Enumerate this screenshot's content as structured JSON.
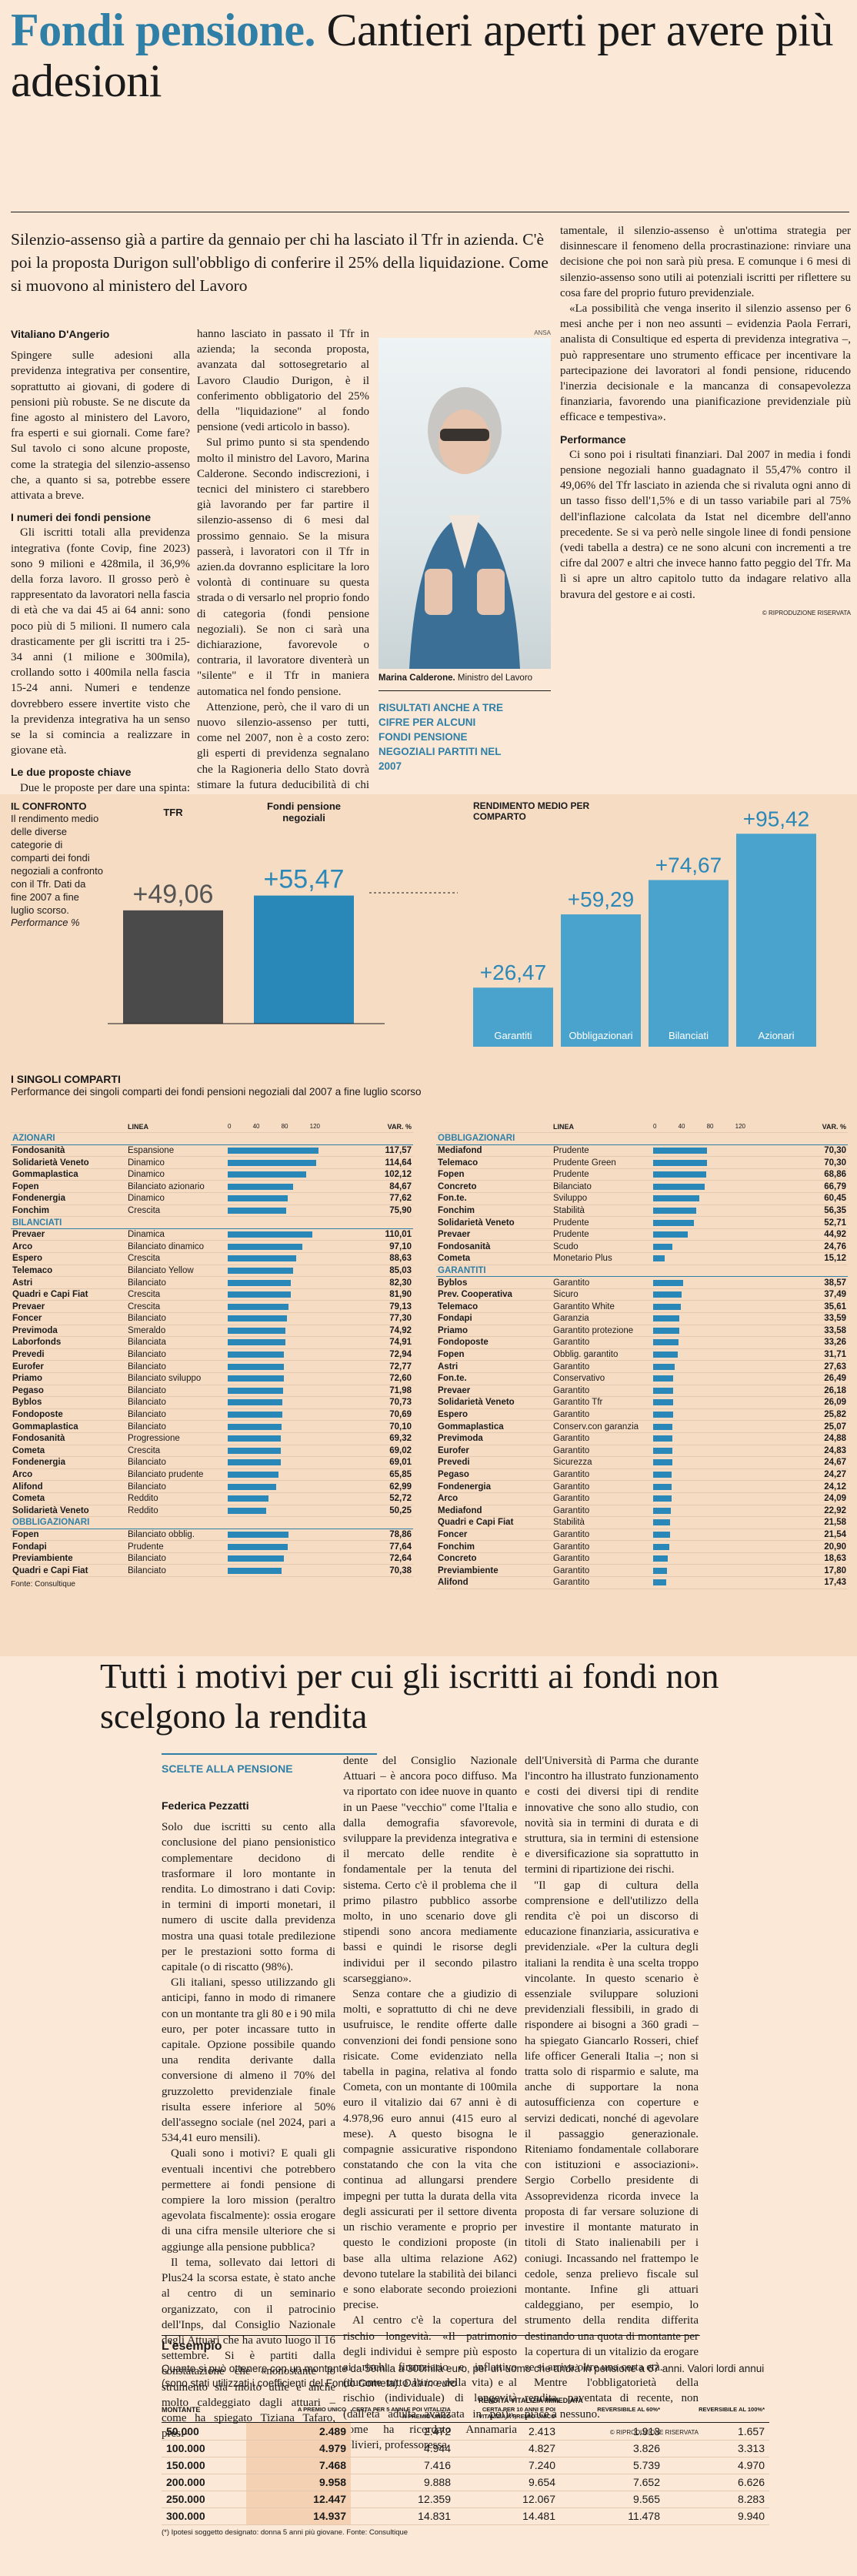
{
  "headline": {
    "accent": "Fondi pensione.",
    "rest": " Cantieri aperti per avere più adesioni"
  },
  "deck": "Silenzio-assenso già a partire da gennaio per chi ha lasciato il Tfr in azienda. C'è poi la proposta Durigon sull'obbligo di conferire il 25% della liquidazione. Come si muovono al ministero del Lavoro",
  "author": "Vitaliano D'Angerio",
  "col1": [
    "Spingere sulle adesioni alla previdenza integrativa per consentire, soprattutto ai giovani, di godere di pensioni più robuste. Se ne discute da fine agosto al ministero del Lavoro, fra esperti e sui giornali. Come fare? Sul tavolo ci sono alcune proposte, come la strategia del silenzio-assenso che, a quanto si sa, potrebbe essere attivata a breve.",
    "#I numeri dei fondi pensione",
    "Gli iscritti totali alla previdenza integrativa (fonte Covip, fine 2023) sono 9 milioni e 428mila, il 36,9% della forza lavoro. Il grosso però è rappresentato da lavoratori nella fascia di età che va dai 45 ai 64 anni: sono poco più di 5 milioni. Il numero cala drasticamente per gli iscritti tra i 25-34 anni (1 milione e 300mila), crollando sotto i 400mila nella fascia 15-24 anni. Numeri e tendenze dovrebbero essere invertite visto che la previdenza integrativa ha un senso se la si comincia a realizzare in giovane età.",
    "#Le due proposte chiave",
    "Due le proposte per dare una spinta: il silenzio-assenso non soltanto per i neoassunti (attualmente in vigore) ma anche per coloro che"
  ],
  "col2": [
    "hanno lasciato in passato il Tfr in azienda; la seconda proposta, avanzata dal sottosegretario al Lavoro Claudio Durigon, è il conferimento obbligatorio del 25% della \"liquidazione\" al fondo pensione (vedi articolo in basso).",
    "Sul primo punto si sta spendendo molto il ministro del Lavoro, Marina Calderone. Secondo indiscrezioni, i tecnici del ministero ci starebbero già lavorando per far partire il silenzio-assenso di 6 mesi dal prossimo gennaio. Se la misura passerà, i lavoratori con il Tfr in azien.da dovranno esplicitare la loro volontà di continuare su questa strada o di versarlo nel proprio fondo di categoria (fondi pensione negoziali). Se non ci sarà una dichiarazione, favorevole o contraria, il lavoratore diventerà un \"silente\" e il Tfr in maniera automatica nel fondo pensione.",
    "Attenzione, però, che il varo di un nuovo silenzio-assenso per tutti, come nel 2007, non è a costo zero: gli esperti di previdenza segnalano che la Ragioneria dello Stato dovrà stimare la futura deducibilità di chi verserà contributi personali; il Tfr invece non è deducibile.",
    "#Silenzio e procrastinazione",
    "Per gli esperti di finanza compor-"
  ],
  "col3": [
    "tamentale, il silenzio-assenso è un'ottima strategia per disinnescare il fenomeno della procrastinazione: rinviare una decisione che poi non sarà più presa. E comunque i 6 mesi di silenzio-assenso sono utili ai potenziali iscritti per riflettere su cosa fare del proprio futuro previdenziale.",
    "«La possibilità che venga inserito il silenzio assenso per 6 mesi anche per i non neo assunti – evidenzia Paola Ferrari, analista di Consultique ed esperta di previdenza integrativa –, può rappresentare uno strumento efficace per incentivare la partecipazione dei lavoratori al fondi pensione, riducendo l'inerzia decisionale e la mancanza di consapevolezza finanziaria, favorendo una pianificazione previdenziale più efficace e tempestiva».",
    "#Performance",
    "Ci sono poi i risultati finanziari. Dal 2007 in media i fondi pensione negoziali hanno guadagnato il 55,47% contro il 49,06% del Tfr lasciato in azienda che si rivaluta ogni anno di un tasso fisso dell'1,5% e di un tasso variabile pari al 75% dell'inflazione calcolata da Istat nel dicembre dell'anno precedente. Se si va però nelle singole linee di fondi pensione (vedi tabella a destra) ce ne sono alcuni con incrementi a tre cifre dal 2007 e altri che invece hanno fatto peggio del Tfr. Ma lì si apre un altro capitolo tutto da indagare relativo alla bravura del gestore e ai costi."
  ],
  "photo": {
    "caption_name": "Marina Calderone.",
    "caption_role": " Ministro del Lavoro",
    "credit": "ANSA"
  },
  "pullquote": "RISULTATI ANCHE A TRE CIFRE PER ALCUNI FONDI PENSIONE NEGOZIALI PARTITI NEL 2007",
  "copyright": "© RIPRODUZIONE RISERVATA",
  "confronto": {
    "title": "IL CONFRONTO",
    "text": "Il rendimento medio delle diverse categorie di comparti dei fondi negoziali a confronto con il Tfr. Dati da fine 2007 a fine luglio scorso.",
    "unit": "Performance %",
    "chart_data": {
      "type": "bar",
      "categories": [
        "TFR",
        "Fondi pensione negoziali"
      ],
      "values": [
        49.06,
        55.47
      ],
      "labels": [
        "+49,06",
        "+55,47"
      ]
    }
  },
  "rendimento": {
    "title": "RENDIMENTO MEDIO PER COMPARTO",
    "chart_data": {
      "type": "bar",
      "categories": [
        "Garantiti",
        "Obbligazionari",
        "Bilanciati",
        "Azionari"
      ],
      "values": [
        26.47,
        59.29,
        74.67,
        95.42
      ],
      "labels": [
        "+26,47",
        "+59,29",
        "+74,67",
        "+95,42"
      ]
    }
  },
  "comparti": {
    "title": "I SINGOLI COMPARTI",
    "subtitle": "Performance dei singoli comparti dei fondi pensioni negoziali dal 2007 a fine luglio scorso",
    "axis": [
      "0",
      "40",
      "80",
      "120"
    ],
    "var_label": "VAR. %",
    "linea_label": "LINEA",
    "source": "Fonte: Consultique",
    "left": [
      {
        "cat": "AZIONARI"
      },
      {
        "n": "Fondosanità",
        "l": "Espansione",
        "v": "117,57",
        "x": 117.57
      },
      {
        "n": "Solidarietà Veneto",
        "l": "Dinamico",
        "v": "114,64",
        "x": 114.64
      },
      {
        "n": "Gommaplastica",
        "l": "Dinamico",
        "v": "102,12",
        "x": 102.12
      },
      {
        "n": "Fopen",
        "l": "Bilanciato azionario",
        "v": "84,67",
        "x": 84.67
      },
      {
        "n": "Fondenergia",
        "l": "Dinamico",
        "v": "77,62",
        "x": 77.62
      },
      {
        "n": "Fonchim",
        "l": "Crescita",
        "v": "75,90",
        "x": 75.9
      },
      {
        "cat": "BILANCIATI"
      },
      {
        "n": "Prevaer",
        "l": "Dinamica",
        "v": "110,01",
        "x": 110.01
      },
      {
        "n": "Arco",
        "l": "Bilanciato dinamico",
        "v": "97,10",
        "x": 97.1
      },
      {
        "n": "Espero",
        "l": "Crescita",
        "v": "88,63",
        "x": 88.63
      },
      {
        "n": "Telemaco",
        "l": "Bilanciato Yellow",
        "v": "85,03",
        "x": 85.03
      },
      {
        "n": "Astri",
        "l": "Bilanciato",
        "v": "82,30",
        "x": 82.3
      },
      {
        "n": "Quadri e Capi Fiat",
        "l": "Crescita",
        "v": "81,90",
        "x": 81.9
      },
      {
        "n": "Prevaer",
        "l": "Crescita",
        "v": "79,13",
        "x": 79.13
      },
      {
        "n": "Foncer",
        "l": "Bilanciato",
        "v": "77,30",
        "x": 77.3
      },
      {
        "n": "Previmoda",
        "l": "Smeraldo",
        "v": "74,92",
        "x": 74.92
      },
      {
        "n": "Laborfonds",
        "l": "Bilanciata",
        "v": "74,91",
        "x": 74.91
      },
      {
        "n": "Prevedi",
        "l": "Bilanciato",
        "v": "72,94",
        "x": 72.94
      },
      {
        "n": "Eurofer",
        "l": "Bilanciato",
        "v": "72,77",
        "x": 72.77
      },
      {
        "n": "Priamo",
        "l": "Bilanciato sviluppo",
        "v": "72,60",
        "x": 72.6
      },
      {
        "n": "Pegaso",
        "l": "Bilanciato",
        "v": "71,98",
        "x": 71.98
      },
      {
        "n": "Byblos",
        "l": "Bilanciato",
        "v": "70,73",
        "x": 70.73
      },
      {
        "n": "Fondoposte",
        "l": "Bilanciato",
        "v": "70,69",
        "x": 70.69
      },
      {
        "n": "Gommaplastica",
        "l": "Bilanciato",
        "v": "70,10",
        "x": 70.1
      },
      {
        "n": "Fondosanità",
        "l": "Progressione",
        "v": "69,32",
        "x": 69.32
      },
      {
        "n": "Cometa",
        "l": "Crescita",
        "v": "69,02",
        "x": 69.02
      },
      {
        "n": "Fondenergia",
        "l": "Bilanciato",
        "v": "69,01",
        "x": 69.01
      },
      {
        "n": "Arco",
        "l": "Bilanciato prudente",
        "v": "65,85",
        "x": 65.85
      },
      {
        "n": "Alifond",
        "l": "Bilanciato",
        "v": "62,99",
        "x": 62.99
      },
      {
        "n": "Cometa",
        "l": "Reddito",
        "v": "52,72",
        "x": 52.72
      },
      {
        "n": "Solidarietà Veneto",
        "l": "Reddito",
        "v": "50,25",
        "x": 50.25
      },
      {
        "cat": "OBBLIGAZIONARI"
      },
      {
        "n": "Fopen",
        "l": "Bilanciato obblig.",
        "v": "78,86",
        "x": 78.86
      },
      {
        "n": "Fondapi",
        "l": "Prudente",
        "v": "77,64",
        "x": 77.64
      },
      {
        "n": "Previambiente",
        "l": "Bilanciato",
        "v": "72,64",
        "x": 72.64
      },
      {
        "n": "Quadri e Capi Fiat",
        "l": "Bilanciato",
        "v": "70,38",
        "x": 70.38
      }
    ],
    "right": [
      {
        "cat": "OBBLIGAZIONARI"
      },
      {
        "n": "Mediafond",
        "l": "Prudente",
        "v": "70,30",
        "x": 70.3
      },
      {
        "n": "Telemaco",
        "l": "Prudente Green",
        "v": "70,30",
        "x": 70.3
      },
      {
        "n": "Fopen",
        "l": "Prudente",
        "v": "68,86",
        "x": 68.86
      },
      {
        "n": "Concreto",
        "l": "Bilanciato",
        "v": "66,79",
        "x": 66.79
      },
      {
        "n": "Fon.te.",
        "l": "Sviluppo",
        "v": "60,45",
        "x": 60.45
      },
      {
        "n": "Fonchim",
        "l": "Stabilità",
        "v": "56,35",
        "x": 56.35
      },
      {
        "n": "Solidarietà Veneto",
        "l": "Prudente",
        "v": "52,71",
        "x": 52.71
      },
      {
        "n": "Prevaer",
        "l": "Prudente",
        "v": "44,92",
        "x": 44.92
      },
      {
        "n": "Fondosanità",
        "l": "Scudo",
        "v": "24,76",
        "x": 24.76
      },
      {
        "n": "Cometa",
        "l": "Monetario Plus",
        "v": "15,12",
        "x": 15.12
      },
      {
        "cat": "GARANTITI"
      },
      {
        "n": "Byblos",
        "l": "Garantito",
        "v": "38,57",
        "x": 38.57
      },
      {
        "n": "Prev. Cooperativa",
        "l": "Sicuro",
        "v": "37,49",
        "x": 37.49
      },
      {
        "n": "Telemaco",
        "l": "Garantito White",
        "v": "35,61",
        "x": 35.61
      },
      {
        "n": "Fondapi",
        "l": "Garanzia",
        "v": "33,59",
        "x": 33.59
      },
      {
        "n": "Priamo",
        "l": "Garantito protezione",
        "v": "33,58",
        "x": 33.58
      },
      {
        "n": "Fondoposte",
        "l": "Garantito",
        "v": "33,26",
        "x": 33.26
      },
      {
        "n": "Fopen",
        "l": "Obblig. garantito",
        "v": "31,71",
        "x": 31.71
      },
      {
        "n": "Astri",
        "l": "Garantito",
        "v": "27,63",
        "x": 27.63
      },
      {
        "n": "Fon.te.",
        "l": "Conservativo",
        "v": "26,49",
        "x": 26.49
      },
      {
        "n": "Prevaer",
        "l": "Garantito",
        "v": "26,18",
        "x": 26.18
      },
      {
        "n": "Solidarietà Veneto",
        "l": "Garantito Tfr",
        "v": "26,09",
        "x": 26.09
      },
      {
        "n": "Espero",
        "l": "Garantito",
        "v": "25,82",
        "x": 25.82
      },
      {
        "n": "Gommaplastica",
        "l": "Conserv.con garanzia",
        "v": "25,07",
        "x": 25.07
      },
      {
        "n": "Previmoda",
        "l": "Garantito",
        "v": "24,88",
        "x": 24.88
      },
      {
        "n": "Eurofer",
        "l": "Garantito",
        "v": "24,83",
        "x": 24.83
      },
      {
        "n": "Prevedi",
        "l": "Sicurezza",
        "v": "24,67",
        "x": 24.67
      },
      {
        "n": "Pegaso",
        "l": "Garantito",
        "v": "24,27",
        "x": 24.27
      },
      {
        "n": "Fondenergia",
        "l": "Garantito",
        "v": "24,12",
        "x": 24.12
      },
      {
        "n": "Arco",
        "l": "Garantito",
        "v": "24,09",
        "x": 24.09
      },
      {
        "n": "Mediafond",
        "l": "Garantito",
        "v": "22,92",
        "x": 22.92
      },
      {
        "n": "Quadri e Capi Fiat",
        "l": "Stabilità",
        "v": "21,58",
        "x": 21.58
      },
      {
        "n": "Foncer",
        "l": "Garantito",
        "v": "21,54",
        "x": 21.54
      },
      {
        "n": "Fonchim",
        "l": "Garantito",
        "v": "20,90",
        "x": 20.9
      },
      {
        "n": "Concreto",
        "l": "Garantito",
        "v": "18,63",
        "x": 18.63
      },
      {
        "n": "Previambiente",
        "l": "Garantito",
        "v": "17,80",
        "x": 17.8
      },
      {
        "n": "Alifond",
        "l": "Garantito",
        "v": "17,43",
        "x": 17.43
      }
    ]
  },
  "article2": {
    "headline": "Tutti i motivi per cui gli iscritti ai fondi non scelgono la rendita",
    "section": "SCELTE ALLA PENSIONE",
    "author": "Federica Pezzatti",
    "col1": [
      "Solo due iscritti su cento alla conclusione del piano pensionistico complementare decidono di trasformare il loro montante in rendita. Lo dimostrano i dati Covip: in termini di importi monetari, il numero di uscite dalla previdenza mostra una quasi totale predilezione per le prestazioni sotto forma di capitale (o di riscatto (98%).",
      "Gli italiani, spesso utilizzando gli anticipi, fanno in modo di rimanere con un montante tra gli 80 e i 90 mila euro, per poter incassare tutto in capitale. Opzione possibile quando una rendita derivante dalla conversione di almeno il 70% del gruzzoletto previdenziale finale risulta essere inferiore al 50% dell'assegno sociale (nel 2024, pari a 534,41 euro mensili).",
      "Quali sono i motivi? E quali gli eventuali incentivi che potrebbero permettere ai fondi pensione di compiere la loro mission (peraltro agevolata fiscalmente): ossia erogare di una cifra mensile ulteriore che si aggiunge alla pensione pubblica?",
      "Il tema, sollevato dai lettori di Plus24 la scorsa estate, è stato anche al centro di un seminario organizzato, con il patrocinio dell'Inps, dal Consiglio Nazionale degli Attuari che ha avuto luogo il 16 settembre. Si è partiti dalla constatazione che «nonostante lo strumento sia molto utile e anche molto caldeggiato dagli attuari – come ha spiegato Tiziana Tafaro, presi-"
    ],
    "col2": [
      "dente del Consiglio Nazionale Attuari – è ancora poco diffuso. Ma va riportato con idee nuove in quanto in un Paese \"vecchio\" come l'Italia e dalla demografia sfavorevole, sviluppare la previdenza integrativa e il mercato delle rendite è fondamentale per la tenuta del sistema. Certo c'è il problema che il primo pilastro pubblico assorbe molto, in uno scenario dove gli stipendi sono ancora mediamente bassi e quindi le risorse degli individui per il secondo pilastro scarseggiano».",
      "Senza contare che a giudizio di molti, e soprattutto di chi ne deve usufruisce, le rendite offerte dalle convenzioni dei fondi pensione sono risicate. Come evidenziato nella tabella in pagina, relativa al fondo Cometa, con un montante di 100mila euro il vitalizio dai 67 anni è di 4.978,96 euro annui (415 euro al mese). A questo bisogna le compagnie assicurative rispondono constatando che con la vita che continua ad allungarsi prendere impegni per tutta la durata della vita degli assicurati per il settore diventa un rischio veramente e proprio per questo le condizioni proposte (in base alla ultima relazione A62) devono tutelare la stabilità dei bilanci e sono elaborate secondo proiezioni precise.",
      "Al centro c'è la copertura del rischio longevità. «Il patrimonio degli individui è sempre più esposto ai rischi finanziario e inflattivo (durante tutto l'arco della vita) e al rischio (individuale) di longevità (dall'età adulta avanzata in poi)», come ha ricordato Annamaria Olivieri, professoressa"
    ],
    "col3": [
      "dell'Università di Parma che durante l'incontro ha illustrato funzionamento e costi dei diversi tipi di rendite innovative che sono allo studio, con novità sia in termini di durata e di struttura, sia in termini di estensione e diversificazione sia soprattutto in termini di ripartizione dei rischi.",
      "\"Il gap di cultura della comprensione e dell'utilizzo della rendita c'è poi un discorso di educazione finanziaria, assicurativa e previdenziale. «Per la cultura degli italiani la rendita è una scelta troppo vincolante. In questo scenario è essenziale sviluppare soluzioni previdenziali flessibili, in grado di rispondere ai bisogni a 360 gradi – ha spiegato Giancarlo Rosseri, chief life officer Generali Italia –; non si tratta solo di risparmio e salute, ma anche di supportare la nona autosufficienza con coperture e servizi dedicati, nonché di agevolare il passaggio generazionale. Riteniamo fondamentale collaborare con istituzioni e associazioni». Sergio Corbello presidente di Assoprevidenza ricorda invece la proposta di far versare soluzione di investire il montante maturato in titoli di Stato inalienabili per i coniugi. Incassando nel frattempo le cedole, senza prelievo fiscale sul montante. Infine gli attuari caldeggiano, per esempio, lo strumento della rendita differita destinando una quota di montante per la copertura di un vitalizio da erogare se si arriva oltre una certa età.",
      "Mentre l'obbligatorietà della rendita, paventata di recente, non piace a nessuno."
    ],
    "copyright": "© RIPRODUZIONE RISERVATA",
    "esempio": {
      "title": "L'esempio",
      "text_a": "Quanto si può ottenere con un montante da 50mila a 300mila euro, per un uomo che andrà in pensione a 67 anni. Valori lordi annui (sono stati utilizzati i coefficienti del Fondo Cometa). ",
      "text_b": "Dati in euro",
      "h_montante": "MONTANTE",
      "h_group": "RENDITA VITALIZIA IMMEDIATA",
      "headers": [
        "A PREMIO UNICO",
        "CERTA PER 5 ANNI E POI VITALIZIA A PREMIO UNICO",
        "CERTA PER 10 ANNI E POI VITALIZIA A PREMIO UNICO",
        "REVERSIBILE AL 60%*",
        "REVERSIBILE AL 100%*"
      ],
      "rows": [
        [
          "50.000",
          "2.489",
          "2.472",
          "2.413",
          "1.913",
          "1.657"
        ],
        [
          "100.000",
          "4.979",
          "4.944",
          "4.827",
          "3.826",
          "3.313"
        ],
        [
          "150.000",
          "7.468",
          "7.416",
          "7.240",
          "5.739",
          "4.970"
        ],
        [
          "200.000",
          "9.958",
          "9.888",
          "9.654",
          "7.652",
          "6.626"
        ],
        [
          "250.000",
          "12.447",
          "12.359",
          "12.067",
          "9.565",
          "8.283"
        ],
        [
          "300.000",
          "14.937",
          "14.831",
          "14.481",
          "11.478",
          "9.940"
        ]
      ],
      "note": "(*) Ipotesi soggetto designato: donna 5 anni più giovane. Fonte: Consultique"
    }
  }
}
